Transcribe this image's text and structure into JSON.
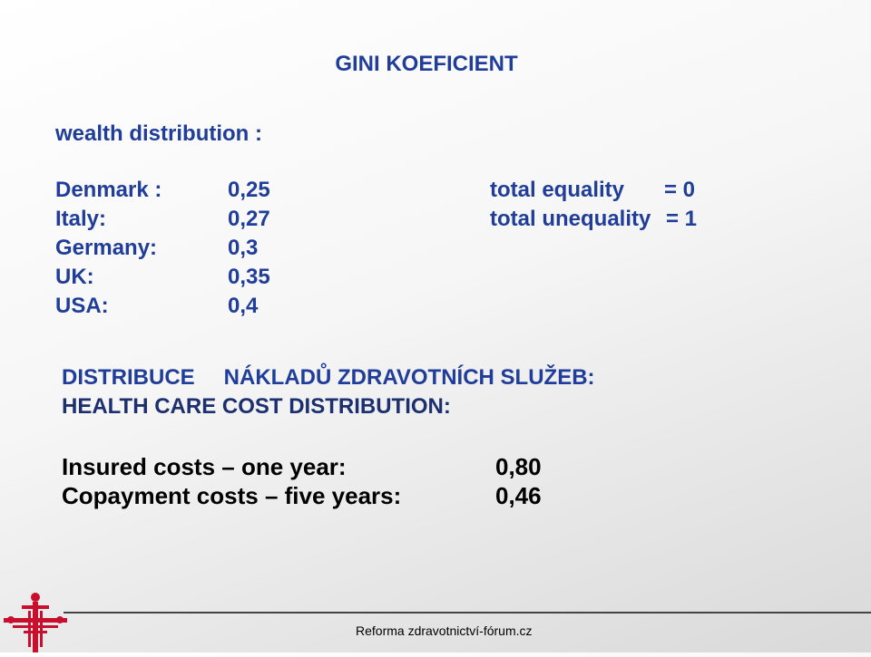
{
  "title": "GINI KOEFICIENT",
  "subtitle": "wealth distribution :",
  "countries": [
    {
      "name": "Denmark :",
      "value": "0,25"
    },
    {
      "name": "Italy:",
      "value": "0,27"
    },
    {
      "name": "Germany:",
      "value": "0,3"
    },
    {
      "name": "UK:",
      "value": "0,35"
    },
    {
      "name": "USA:",
      "value": "0,4"
    }
  ],
  "legend": [
    {
      "label": "total equality",
      "value": "= 0"
    },
    {
      "label": "total unequality",
      "value": "= 1"
    }
  ],
  "section": {
    "line1_word1": "DISTRIBUCE",
    "line1_rest": "NÁKLADŮ ZDRAVOTNÍCH SLUŽEB:",
    "line2": "HEALTH CARE COST DISTRIBUTION:"
  },
  "costs": [
    {
      "label": "Insured costs – one year:",
      "value": "0,80"
    },
    {
      "label": "Copayment costs – five years:",
      "value": "0,46"
    }
  ],
  "footer": "Reforma zdravotnictví-fórum.cz",
  "colors": {
    "heading": "#1f3d99",
    "logo": "#c8102e"
  },
  "logo_icon": "medical-cross-logo-icon"
}
